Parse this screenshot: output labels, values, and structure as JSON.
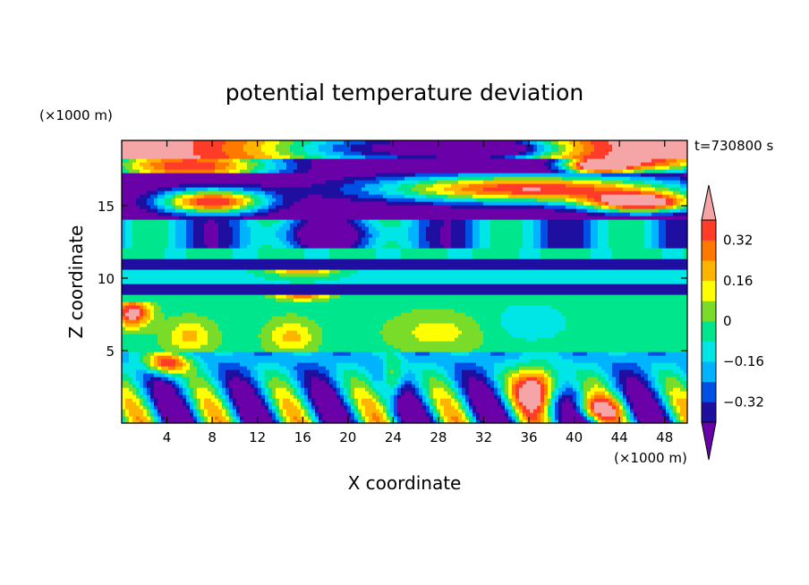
{
  "chart_data": {
    "type": "heatmap",
    "title": "potential temperature deviation",
    "xlabel": "X coordinate",
    "ylabel": "Z coordinate",
    "x_unit": "(×1000 m)",
    "y_unit": "(×1000 m)",
    "time_label": "t=730800 s",
    "xlim": [
      0,
      50
    ],
    "ylim": [
      0,
      19.5
    ],
    "x_ticks": [
      4,
      8,
      12,
      16,
      20,
      24,
      28,
      32,
      36,
      40,
      44,
      48
    ],
    "y_ticks": [
      5,
      10,
      15
    ],
    "colorbar": {
      "levels": [
        -0.4,
        -0.32,
        -0.24,
        -0.16,
        -0.08,
        0,
        0.08,
        0.16,
        0.24,
        0.32,
        0.4
      ],
      "tick_values": [
        0.32,
        0.16,
        0,
        -0.16,
        -0.32
      ],
      "tick_labels": [
        "0.32",
        "0.16",
        "0",
        "−0.16",
        "−0.32"
      ],
      "colors": [
        "#6a00a8",
        "#1e0fa0",
        "#0050e6",
        "#00b4ff",
        "#00e6e6",
        "#00e68c",
        "#78dc28",
        "#ffff00",
        "#ffb400",
        "#ff7800",
        "#ff3c28",
        "#f5a5a5"
      ],
      "extend": "both"
    }
  }
}
